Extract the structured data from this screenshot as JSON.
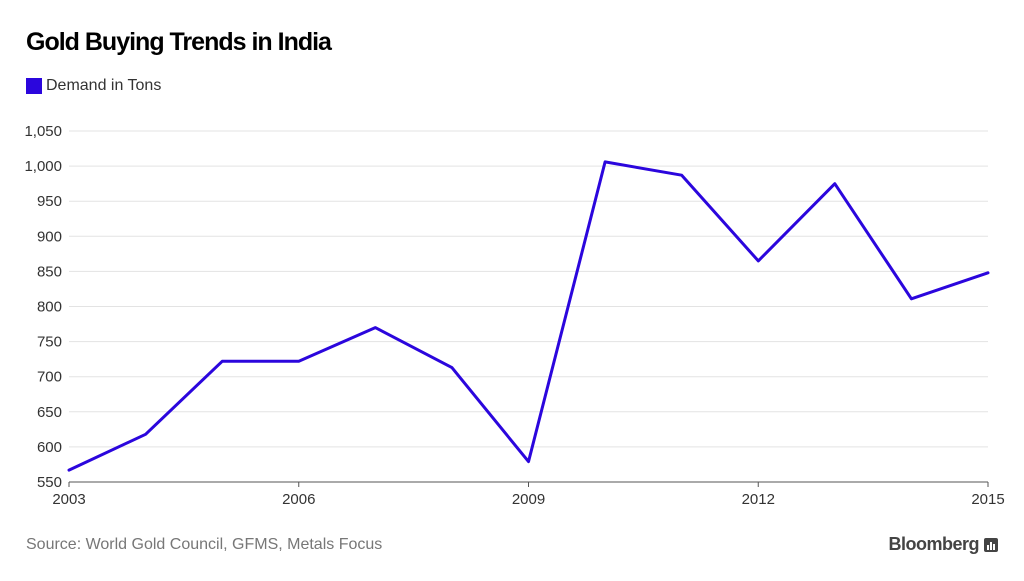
{
  "title": "Gold Buying Trends in India",
  "legend": {
    "label": "Demand in Tons",
    "color": "#2b06dd"
  },
  "source": "Source: World Gold Council, GFMS, Metals Focus",
  "brand": "Bloomberg",
  "chart_data": {
    "type": "line",
    "title": "Gold Buying Trends in India",
    "xlabel": "",
    "ylabel": "",
    "x": [
      2003,
      2004,
      2005,
      2006,
      2007,
      2008,
      2009,
      2010,
      2011,
      2012,
      2013,
      2014,
      2015
    ],
    "series": [
      {
        "name": "Demand in Tons",
        "color": "#2b06dd",
        "values": [
          567,
          618,
          722,
          722,
          770,
          713,
          579,
          1006,
          987,
          865,
          975,
          811,
          848
        ]
      }
    ],
    "xticks": [
      "2003",
      "2006",
      "2009",
      "2012",
      "2015"
    ],
    "yticks": [
      "550",
      "600",
      "650",
      "700",
      "750",
      "800",
      "850",
      "900",
      "950",
      "1,000",
      "1,050"
    ],
    "xlim": [
      2003,
      2015
    ],
    "ylim": [
      550,
      1050
    ],
    "grid": "horizontal",
    "legend_position": "top-left"
  }
}
